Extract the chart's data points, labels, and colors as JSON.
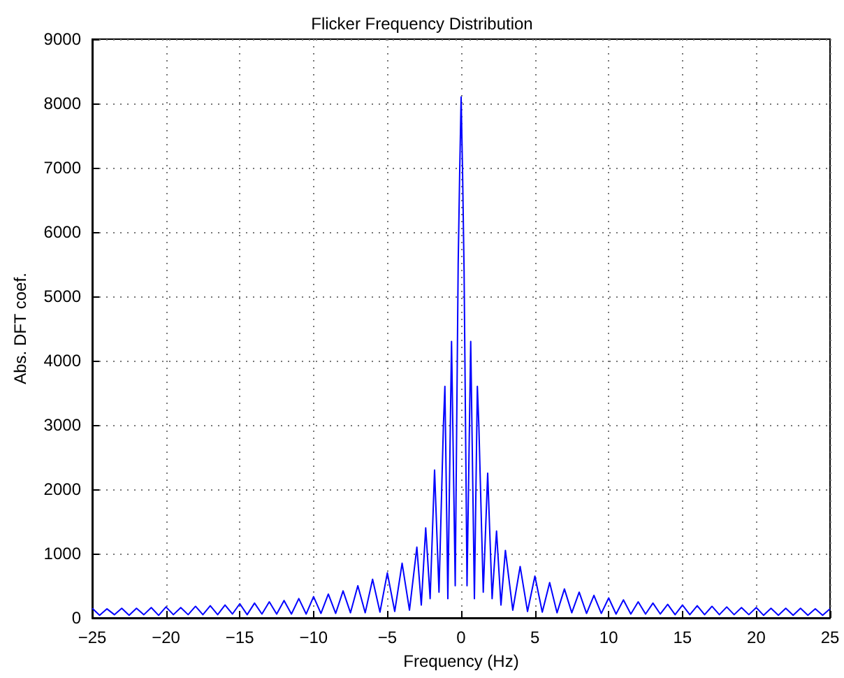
{
  "chart_data": {
    "type": "line",
    "title": "Flicker Frequency Distribution",
    "xlabel": "Frequency (Hz)",
    "ylabel": "Abs. DFT coef.",
    "xlim": [
      -25,
      25
    ],
    "xticks": [
      -25,
      -20,
      -15,
      -10,
      -5,
      0,
      5,
      10,
      15,
      20,
      25
    ],
    "ylim": [
      0,
      9000
    ],
    "yticks": [
      0,
      1000,
      2000,
      3000,
      4000,
      5000,
      6000,
      7000,
      8000,
      9000
    ],
    "grid": true,
    "marker": "none",
    "line_style": "solid",
    "series": [
      {
        "color": "#0000ff",
        "x": [
          -25,
          -24.5,
          -24,
          -23.5,
          -23,
          -22.5,
          -22,
          -21.5,
          -21,
          -20.5,
          -20,
          -19.5,
          -19,
          -18.5,
          -18,
          -17.5,
          -17,
          -16.5,
          -16,
          -15.5,
          -15,
          -14.5,
          -14,
          -13.5,
          -13,
          -12.5,
          -12,
          -11.5,
          -11,
          -10.5,
          -10,
          -9.5,
          -9,
          -8.5,
          -8,
          -7.5,
          -7,
          -6.5,
          -6,
          -5.5,
          -5,
          -4.5,
          -4,
          -3.5,
          -3,
          -2.7,
          -2.4,
          -2.1,
          -1.8,
          -1.5,
          -1.2,
          -1.1,
          -0.9,
          -0.65,
          -0.4,
          -0.2,
          -0.1,
          0,
          0.1,
          0.2,
          0.4,
          0.65,
          0.9,
          1.1,
          1.2,
          1.5,
          1.8,
          2.1,
          2.4,
          2.7,
          3,
          3.5,
          4,
          4.5,
          5,
          5.5,
          6,
          6.5,
          7,
          7.5,
          8,
          8.5,
          9,
          9.5,
          10,
          10.5,
          11,
          11.5,
          12,
          12.5,
          13,
          13.5,
          14,
          14.5,
          15,
          15.5,
          16,
          16.5,
          17,
          17.5,
          18,
          18.5,
          19,
          19.5,
          20,
          20.5,
          21,
          21.5,
          22,
          22.5,
          23,
          23.5,
          24,
          24.5,
          25
        ],
        "values": [
          150,
          40,
          140,
          50,
          150,
          40,
          150,
          50,
          160,
          40,
          170,
          50,
          160,
          50,
          180,
          50,
          190,
          50,
          200,
          60,
          220,
          50,
          230,
          60,
          250,
          60,
          270,
          60,
          300,
          60,
          330,
          70,
          370,
          70,
          420,
          80,
          500,
          80,
          600,
          90,
          700,
          100,
          850,
          120,
          1100,
          200,
          1400,
          300,
          2300,
          400,
          3000,
          3600,
          300,
          4300,
          500,
          5500,
          6900,
          8100,
          6900,
          5400,
          500,
          4300,
          300,
          3600,
          3000,
          400,
          2250,
          300,
          1350,
          200,
          1050,
          120,
          800,
          100,
          650,
          90,
          550,
          80,
          450,
          80,
          400,
          70,
          350,
          70,
          310,
          60,
          280,
          60,
          250,
          60,
          230,
          60,
          210,
          50,
          200,
          50,
          190,
          50,
          180,
          50,
          170,
          50,
          160,
          50,
          160,
          40,
          150,
          40,
          150,
          40,
          150,
          40,
          140,
          40,
          140
        ]
      }
    ]
  }
}
